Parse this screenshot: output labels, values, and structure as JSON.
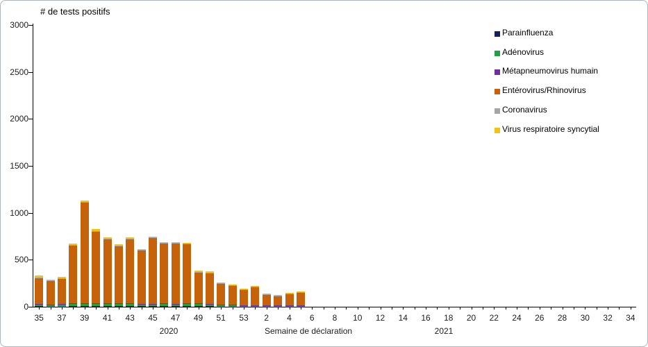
{
  "title": "# de tests positifs",
  "x_axis": {
    "caption": "Semaine de déclaration",
    "year_2020": "2020",
    "year_2021": "2021"
  },
  "y_axis": {
    "tick_values": [
      0,
      500,
      1000,
      1500,
      2000,
      2500,
      3000
    ]
  },
  "legend": {
    "position": "right",
    "items": [
      {
        "label": "Parainfluenza",
        "color": "#17215f"
      },
      {
        "label": "Adénovirus",
        "color": "#21a04b"
      },
      {
        "label": "Métapneumovirus humain",
        "color": "#7030a0"
      },
      {
        "label": "Entérovirus/Rhinovirus",
        "color": "#c66209"
      },
      {
        "label": "Coronavirus",
        "color": "#a6a6a6"
      },
      {
        "label": "Virus respiratoire syncytial",
        "color": "#efc31a"
      }
    ]
  },
  "chart_data": {
    "type": "bar",
    "stacked": true,
    "title": "# de tests positifs",
    "xlabel": "Semaine de déclaration",
    "ylabel": "# de tests positifs",
    "ylim": [
      0,
      3000
    ],
    "ytick_interval": 500,
    "grid": false,
    "legend_position": "right",
    "categories": [
      "35",
      "36",
      "37",
      "38",
      "39",
      "40",
      "41",
      "42",
      "43",
      "44",
      "45",
      "46",
      "47",
      "48",
      "49",
      "50",
      "51",
      "52",
      "53",
      "1",
      "2",
      "3",
      "4",
      "5",
      "6",
      "7",
      "8",
      "9",
      "10",
      "11",
      "12",
      "13",
      "14",
      "15",
      "16",
      "17",
      "18",
      "19",
      "20",
      "21",
      "22",
      "23",
      "24",
      "25",
      "26",
      "27",
      "28",
      "29",
      "30",
      "31",
      "32",
      "33",
      "34"
    ],
    "category_years": {
      "2020": "weeks 35-53",
      "2021": "weeks 1-34"
    },
    "x_tick_labels": [
      "35",
      "",
      "37",
      "",
      "39",
      "",
      "41",
      "",
      "43",
      "",
      "45",
      "",
      "47",
      "",
      "49",
      "",
      "51",
      "",
      "53",
      "",
      "2",
      "",
      "4",
      "",
      "6",
      "",
      "8",
      "",
      "10",
      "",
      "12",
      "",
      "14",
      "",
      "16",
      "",
      "18",
      "",
      "20",
      "",
      "22",
      "",
      "24",
      "",
      "26",
      "",
      "28",
      "",
      "30",
      "",
      "32",
      "",
      "34"
    ],
    "series": [
      {
        "name": "Parainfluenza",
        "color": "#17215f",
        "values": [
          4,
          3,
          3,
          4,
          6,
          8,
          6,
          6,
          5,
          5,
          6,
          6,
          5,
          5,
          4,
          4,
          3,
          3,
          2,
          2,
          2,
          2,
          2,
          2,
          0,
          0,
          0,
          0,
          0,
          0,
          0,
          0,
          0,
          0,
          0,
          0,
          0,
          0,
          0,
          0,
          0,
          0,
          0,
          0,
          0,
          0,
          0,
          0,
          0,
          0,
          0,
          0,
          0
        ]
      },
      {
        "name": "Adénovirus",
        "color": "#21a04b",
        "values": [
          18,
          15,
          16,
          25,
          22,
          20,
          22,
          20,
          24,
          22,
          18,
          20,
          22,
          25,
          25,
          22,
          15,
          14,
          12,
          10,
          8,
          8,
          8,
          10,
          0,
          0,
          0,
          0,
          0,
          0,
          0,
          0,
          0,
          0,
          0,
          0,
          0,
          0,
          0,
          0,
          0,
          0,
          0,
          0,
          0,
          0,
          0,
          0,
          0,
          0,
          0,
          0,
          0
        ]
      },
      {
        "name": "Métapneumovirus humain",
        "color": "#7030a0",
        "values": [
          5,
          6,
          8,
          6,
          8,
          8,
          8,
          8,
          6,
          6,
          8,
          8,
          6,
          6,
          5,
          5,
          5,
          5,
          4,
          5,
          4,
          4,
          4,
          4,
          0,
          0,
          0,
          0,
          0,
          0,
          0,
          0,
          0,
          0,
          0,
          0,
          0,
          0,
          0,
          0,
          0,
          0,
          0,
          0,
          0,
          0,
          0,
          0,
          0,
          0,
          0,
          0,
          0
        ]
      },
      {
        "name": "Entérovirus/Rhinovirus",
        "color": "#c66209",
        "values": [
          278,
          250,
          270,
          615,
          1070,
          765,
          682,
          612,
          685,
          564,
          698,
          638,
          640,
          628,
          335,
          328,
          226,
          202,
          163,
          193,
          118,
          103,
          126,
          132,
          0,
          0,
          0,
          0,
          0,
          0,
          0,
          0,
          0,
          0,
          0,
          0,
          0,
          0,
          0,
          0,
          0,
          0,
          0,
          0,
          0,
          0,
          0,
          0,
          0,
          0,
          0,
          0,
          0
        ]
      },
      {
        "name": "Coronavirus",
        "color": "#a6a6a6",
        "values": [
          8,
          4,
          8,
          6,
          8,
          8,
          8,
          7,
          6,
          6,
          6,
          6,
          5,
          5,
          4,
          4,
          3,
          3,
          2,
          6,
          2,
          2,
          3,
          4,
          0,
          0,
          0,
          0,
          0,
          0,
          0,
          0,
          0,
          0,
          0,
          0,
          0,
          0,
          0,
          0,
          0,
          0,
          0,
          0,
          0,
          0,
          0,
          0,
          0,
          0,
          0,
          0,
          0
        ]
      },
      {
        "name": "Virus respiratoire syncytial",
        "color": "#efc31a",
        "values": [
          17,
          7,
          15,
          14,
          16,
          16,
          14,
          12,
          14,
          12,
          14,
          12,
          12,
          11,
          12,
          12,
          8,
          8,
          7,
          9,
          6,
          6,
          7,
          8,
          0,
          0,
          0,
          0,
          0,
          0,
          0,
          0,
          0,
          0,
          0,
          0,
          0,
          0,
          0,
          0,
          0,
          0,
          0,
          0,
          0,
          0,
          0,
          0,
          0,
          0,
          0,
          0,
          0
        ]
      }
    ],
    "totals_by_week": [
      330,
      285,
      320,
      670,
      1130,
      825,
      740,
      665,
      740,
      615,
      750,
      690,
      690,
      680,
      385,
      375,
      260,
      235,
      190,
      225,
      140,
      125,
      150,
      160,
      0,
      0,
      0,
      0,
      0,
      0,
      0,
      0,
      0,
      0,
      0,
      0,
      0,
      0,
      0,
      0,
      0,
      0,
      0,
      0,
      0,
      0,
      0,
      0,
      0,
      0,
      0,
      0,
      0
    ]
  }
}
